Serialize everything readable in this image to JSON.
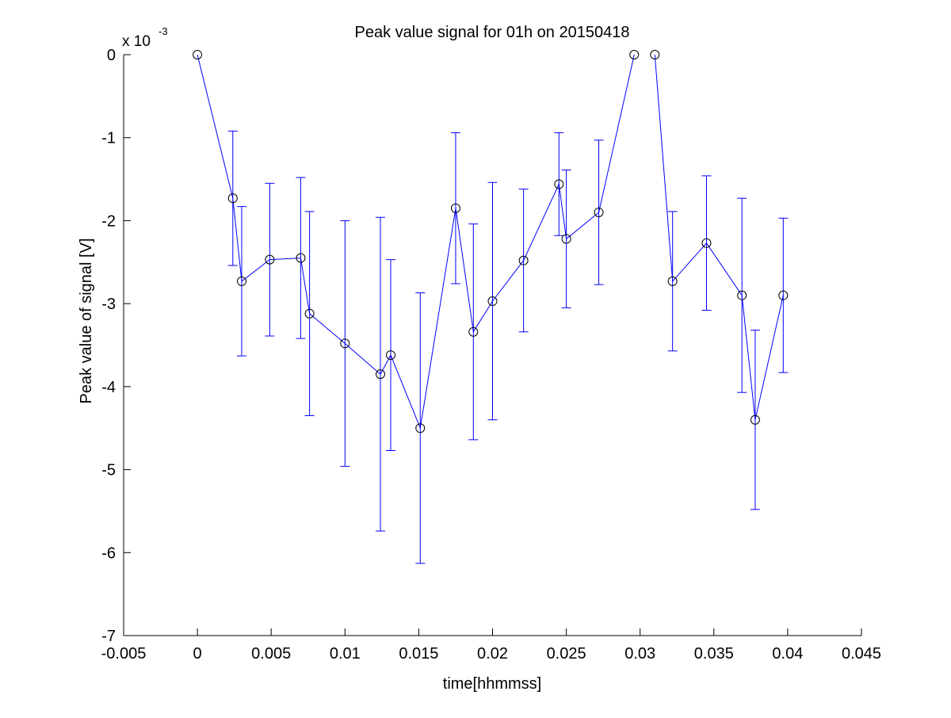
{
  "chart_data": {
    "type": "line",
    "title": "Peak value signal for 01h on 20150418",
    "xlabel": "time[hhmmss]",
    "ylabel": "Peak value of signal [V]",
    "y_exponent_label": "x 10",
    "y_exponent_power": "-3",
    "xlim": [
      -0.005,
      0.045
    ],
    "ylim": [
      -7,
      0
    ],
    "x_ticks": [
      -0.005,
      0,
      0.005,
      0.01,
      0.015,
      0.02,
      0.025,
      0.03,
      0.035,
      0.04,
      0.045
    ],
    "x_tick_labels": [
      "-0.005",
      "0",
      "0.005",
      "0.01",
      "0.015",
      "0.02",
      "0.025",
      "0.03",
      "0.035",
      "0.04",
      "0.045"
    ],
    "y_ticks": [
      0,
      -1,
      -2,
      -3,
      -4,
      -5,
      -6,
      -7
    ],
    "y_tick_labels": [
      "0",
      "-1",
      "-2",
      "-3",
      "-4",
      "-5",
      "-6",
      "-7"
    ],
    "grid": false,
    "series_color": "#0000ff",
    "marker_color": "#000000",
    "segments": [
      [
        {
          "x": 0.0,
          "y": 0.0,
          "err": null
        },
        {
          "x": 0.0024,
          "y": -1.73,
          "err": 0.81
        },
        {
          "x": 0.003,
          "y": -2.73,
          "err": 0.9
        },
        {
          "x": 0.0049,
          "y": -2.47,
          "err": 0.92
        },
        {
          "x": 0.007,
          "y": -2.45,
          "err": 0.97
        },
        {
          "x": 0.0076,
          "y": -3.12,
          "err": 1.23
        },
        {
          "x": 0.01,
          "y": -3.48,
          "err": 1.48
        },
        {
          "x": 0.0124,
          "y": -3.85,
          "err": 1.89
        },
        {
          "x": 0.0131,
          "y": -3.62,
          "err": 1.15
        },
        {
          "x": 0.0151,
          "y": -4.5,
          "err": 1.63
        },
        {
          "x": 0.0175,
          "y": -1.85,
          "err": 0.91
        },
        {
          "x": 0.0187,
          "y": -3.34,
          "err": 1.3
        },
        {
          "x": 0.02,
          "y": -2.97,
          "err": 1.43
        },
        {
          "x": 0.0221,
          "y": -2.48,
          "err": 0.86
        },
        {
          "x": 0.0245,
          "y": -1.56,
          "err": 0.62
        },
        {
          "x": 0.025,
          "y": -2.22,
          "err": 0.83
        },
        {
          "x": 0.0272,
          "y": -1.9,
          "err": 0.87
        },
        {
          "x": 0.0296,
          "y": 0.0,
          "err": null
        }
      ],
      [
        {
          "x": 0.031,
          "y": 0.0,
          "err": null
        },
        {
          "x": 0.0322,
          "y": -2.73,
          "err": 0.84
        },
        {
          "x": 0.0345,
          "y": -2.27,
          "err": 0.81
        },
        {
          "x": 0.0369,
          "y": -2.9,
          "err": 1.17
        },
        {
          "x": 0.0378,
          "y": -4.4,
          "err": 1.08
        },
        {
          "x": 0.0397,
          "y": -2.9,
          "err": 0.93
        }
      ]
    ]
  }
}
